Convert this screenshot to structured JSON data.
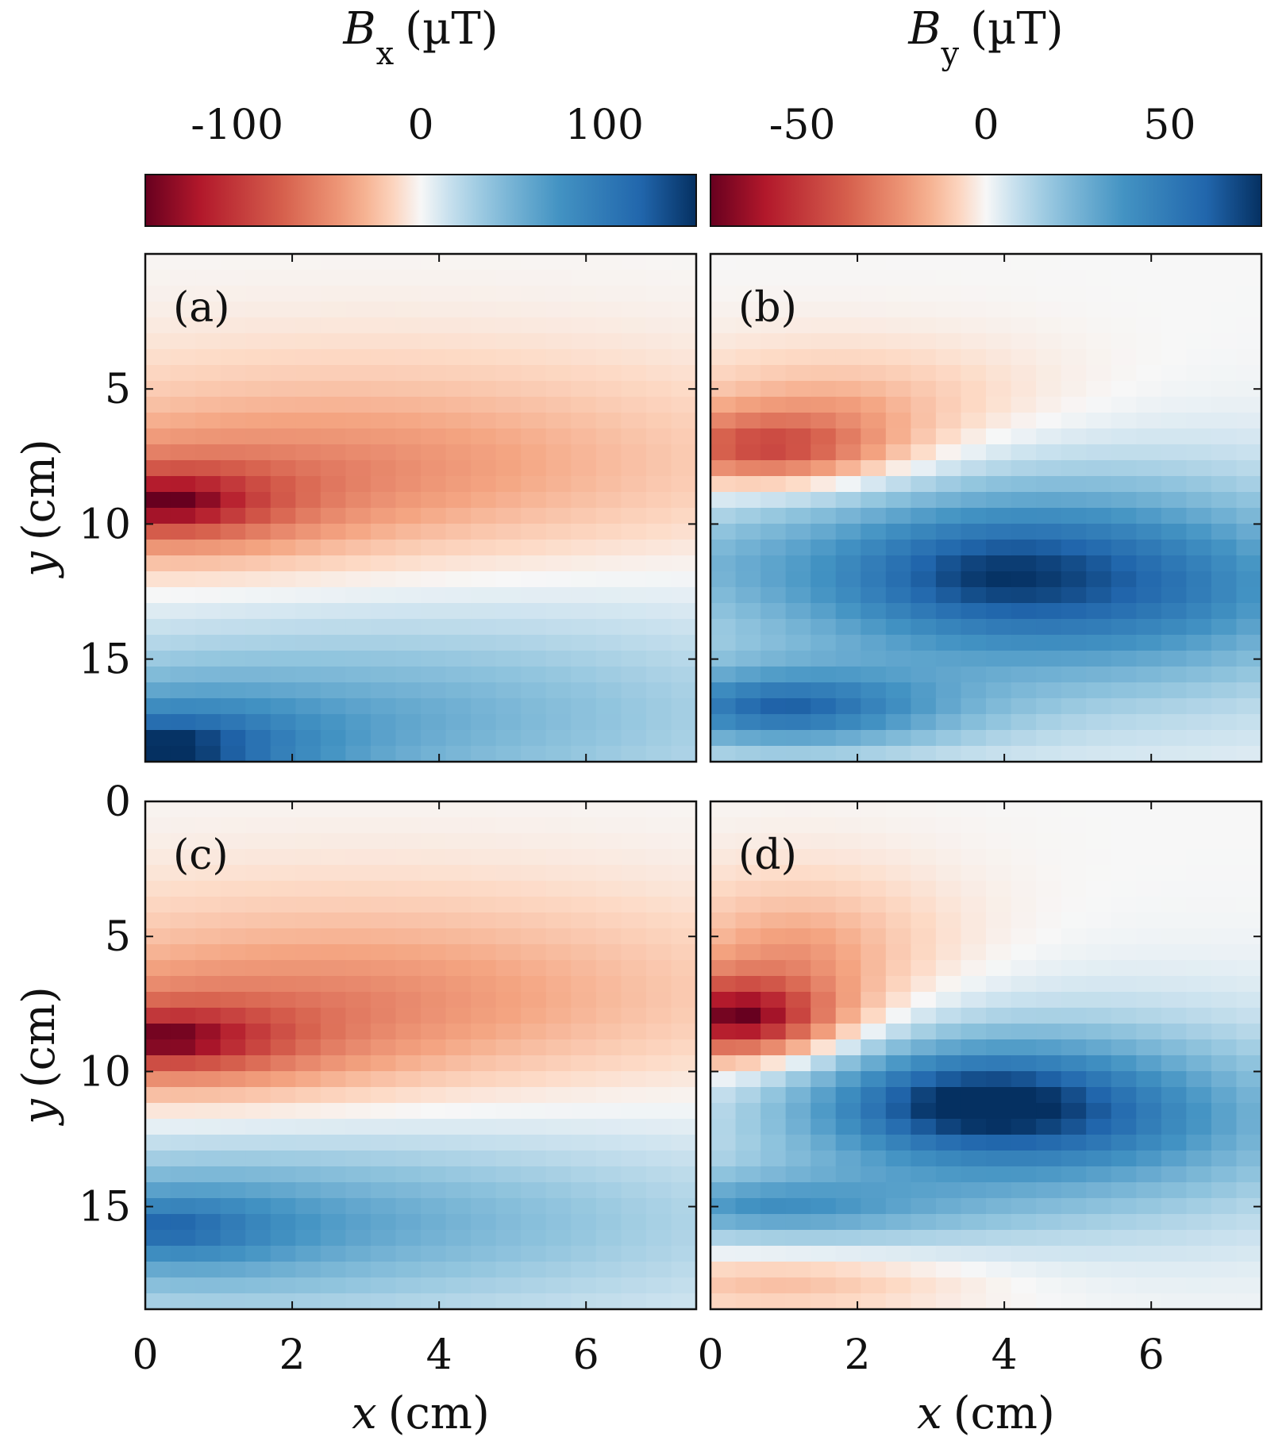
{
  "chart_data": {
    "type": "heatmap",
    "x_range": [
      0,
      7.5
    ],
    "y_range": [
      0,
      18.8
    ],
    "y_direction": "down",
    "xlabel": {
      "symbol": "x",
      "unit": "(cm)"
    },
    "ylabel": {
      "symbol": "y",
      "unit": "(cm)"
    },
    "x_ticks": [
      "0",
      "2",
      "4",
      "6"
    ],
    "x_tick_values": [
      0,
      2,
      4,
      6
    ],
    "y_ticks_top": [
      "5",
      "10",
      "15"
    ],
    "y_tick_values_top": [
      5,
      10,
      15
    ],
    "y_ticks_bottom": [
      "0",
      "5",
      "10",
      "15"
    ],
    "y_tick_values_bottom": [
      0,
      5,
      10,
      15
    ],
    "colormap": "red-white-blue (diverging)",
    "colormap_endpoints": {
      "negative": "#67001f",
      "zero": "#f7f7f7",
      "positive": "#053061"
    },
    "colorbars": [
      {
        "id": "bx",
        "symbol": "B",
        "subscript": "x",
        "unit": "(µT)",
        "range": [
          -150,
          150
        ],
        "tick_labels": [
          "-100",
          "0",
          "100"
        ],
        "tick_values": [
          -100,
          0,
          100
        ]
      },
      {
        "id": "by",
        "symbol": "B",
        "subscript": "y",
        "unit": "(µT)",
        "range": [
          -75,
          75
        ],
        "tick_labels": [
          "-50",
          "0",
          "50"
        ],
        "tick_values": [
          -50,
          0,
          50
        ]
      }
    ],
    "panels": [
      {
        "label": "(a)",
        "component": "Bx",
        "colorbar": "bx",
        "features": [
          {
            "x": 0.3,
            "y": 9.2,
            "value": -150,
            "sx": 1.4,
            "sy": 1.2,
            "p": 1.2
          },
          {
            "x": 3.0,
            "y": 7.8,
            "value": -45,
            "sx": 5.0,
            "sy": 3.5,
            "p": 1.6
          },
          {
            "x": 0.3,
            "y": 18.3,
            "value": 150,
            "sx": 1.8,
            "sy": 1.6,
            "p": 1.2
          },
          {
            "x": 4.0,
            "y": 17.0,
            "value": 45,
            "sx": 5.5,
            "sy": 4.0,
            "p": 1.6
          }
        ]
      },
      {
        "label": "(b)",
        "component": "By",
        "colorbar": "by",
        "features": [
          {
            "x": 0.8,
            "y": 7.2,
            "value": -45,
            "sx": 1.6,
            "sy": 1.3,
            "p": 1.8
          },
          {
            "x": 1.8,
            "y": 5.5,
            "value": -15,
            "sx": 2.5,
            "sy": 2.0,
            "p": 1.5
          },
          {
            "x": 3.8,
            "y": 11.9,
            "value": 62,
            "sx": 2.8,
            "sy": 2.8,
            "p": 1.7
          },
          {
            "x": 1.0,
            "y": 16.8,
            "value": 58,
            "sx": 2.2,
            "sy": 1.4,
            "p": 1.6
          },
          {
            "x": 6.5,
            "y": 12.5,
            "value": 28,
            "sx": 3.0,
            "sy": 4.0,
            "p": 1.6
          },
          {
            "x": 0.2,
            "y": 11.5,
            "value": 12,
            "sx": 1.5,
            "sy": 2.5,
            "p": 1.5
          }
        ]
      },
      {
        "label": "(c)",
        "component": "Bx",
        "colorbar": "bx",
        "features": [
          {
            "x": 0.3,
            "y": 8.8,
            "value": -145,
            "sx": 1.6,
            "sy": 1.2,
            "p": 1.2
          },
          {
            "x": 3.0,
            "y": 7.2,
            "value": -45,
            "sx": 5.0,
            "sy": 3.5,
            "p": 1.6
          },
          {
            "x": 0.3,
            "y": 15.8,
            "value": 100,
            "sx": 1.8,
            "sy": 1.5,
            "p": 1.2
          },
          {
            "x": 3.5,
            "y": 15.5,
            "value": 45,
            "sx": 5.5,
            "sy": 3.5,
            "p": 1.6
          }
        ]
      },
      {
        "label": "(d)",
        "component": "By",
        "colorbar": "by",
        "features": [
          {
            "x": 0.4,
            "y": 8.0,
            "value": -75,
            "sx": 1.2,
            "sy": 1.4,
            "p": 1.6
          },
          {
            "x": 1.2,
            "y": 5.5,
            "value": -20,
            "sx": 1.8,
            "sy": 2.5,
            "p": 1.5
          },
          {
            "x": 3.6,
            "y": 11.2,
            "value": 68,
            "sx": 2.2,
            "sy": 2.0,
            "p": 1.6
          },
          {
            "x": 5.5,
            "y": 12.0,
            "value": 30,
            "sx": 3.5,
            "sy": 3.5,
            "p": 1.6
          },
          {
            "x": 0.8,
            "y": 15.0,
            "value": 35,
            "sx": 2.5,
            "sy": 1.2,
            "p": 1.6
          },
          {
            "x": 1.0,
            "y": 17.8,
            "value": -14,
            "sx": 2.5,
            "sy": 1.1,
            "p": 1.6
          }
        ]
      }
    ],
    "grid": "off",
    "legend": "colorbars at top"
  }
}
